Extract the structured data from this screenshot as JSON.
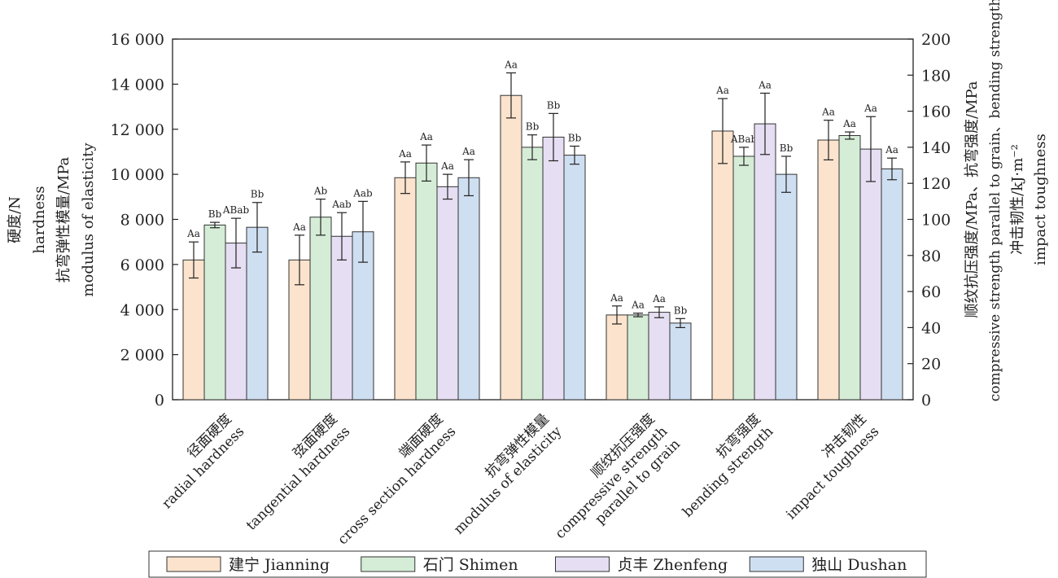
{
  "chart_data": {
    "type": "bar",
    "left_axis": {
      "lines": [
        "硬度/N",
        "hardness",
        "抗弯弹性模量/MPa",
        "modulus of elasticity"
      ],
      "ylim": [
        0,
        16000
      ],
      "ticks": [
        0,
        2000,
        4000,
        6000,
        8000,
        10000,
        12000,
        14000,
        16000
      ],
      "tick_labels": [
        "0",
        "2 000",
        "4 000",
        "6 000",
        "8 000",
        "10 000",
        "12 000",
        "14 000",
        "16 000"
      ]
    },
    "right_axis": {
      "lines": [
        "顺纹抗压强度/MPa、抗弯强度/MPa",
        "compressive strength parallel to grain、bending strength",
        "冲击韧性/kJ·m⁻²",
        "impact toughness"
      ],
      "ylim": [
        0,
        200
      ],
      "ticks": [
        0,
        20,
        40,
        60,
        80,
        100,
        120,
        140,
        160,
        180,
        200
      ],
      "tick_labels": [
        "0",
        "20",
        "40",
        "60",
        "80",
        "100",
        "120",
        "140",
        "160",
        "180",
        "200"
      ]
    },
    "series": [
      {
        "name": "建宁 Jianning",
        "color": "#fbe3cd"
      },
      {
        "name": "石门 Shimen",
        "color": "#d5edd7"
      },
      {
        "name": "贞丰 Zhenfeng",
        "color": "#e6def2"
      },
      {
        "name": "独山 Dushan",
        "color": "#cfdff2"
      }
    ],
    "categories": [
      {
        "zh": "径面硬度",
        "en": [
          "radial hardness"
        ],
        "axis": "left",
        "values": [
          6200,
          7750,
          6950,
          7650
        ],
        "errors": [
          800,
          120,
          1100,
          1100
        ],
        "labels": [
          "Aa",
          "Bb",
          "ABab",
          "Bb"
        ]
      },
      {
        "zh": "弦面硬度",
        "en": [
          "tangential hardness"
        ],
        "axis": "left",
        "values": [
          6200,
          8100,
          7250,
          7450
        ],
        "errors": [
          1100,
          800,
          1050,
          1350
        ],
        "labels": [
          "Aa",
          "Ab",
          "Aab",
          "Aab"
        ]
      },
      {
        "zh": "端面硬度",
        "en": [
          "cross section hardness"
        ],
        "axis": "left",
        "values": [
          9850,
          10500,
          9450,
          9850
        ],
        "errors": [
          700,
          800,
          550,
          800
        ],
        "labels": [
          "Aa",
          "Aa",
          "Aa",
          "Aa"
        ]
      },
      {
        "zh": "抗弯弹性模量",
        "en": [
          "modulus of elasticity"
        ],
        "axis": "left",
        "values": [
          13500,
          11200,
          11650,
          10850
        ],
        "errors": [
          1000,
          550,
          1050,
          400
        ],
        "labels": [
          "Aa",
          "Bb",
          "Bb",
          "Bb"
        ]
      },
      {
        "zh": "顺纹抗压强度",
        "en": [
          "compressive strength",
          "parallel to grain"
        ],
        "axis": "right",
        "values": [
          47,
          47,
          48.5,
          42.5
        ],
        "errors": [
          5,
          1,
          3,
          2.5
        ],
        "labels": [
          "Aa",
          "Aa",
          "Aa",
          "Bb"
        ]
      },
      {
        "zh": "抗弯强度",
        "en": [
          "bending strength"
        ],
        "axis": "right",
        "values": [
          149,
          135,
          153,
          125
        ],
        "errors": [
          18,
          5,
          17,
          10
        ],
        "labels": [
          "Aa",
          "ABab",
          "Aa",
          "Bb"
        ]
      },
      {
        "zh": "冲击韧性",
        "en": [
          "impact toughness"
        ],
        "axis": "right",
        "values": [
          144,
          146.5,
          139,
          128
        ],
        "errors": [
          11,
          2,
          18,
          6
        ],
        "labels": [
          "Aa",
          "Aa",
          "Aa",
          "Aa"
        ]
      }
    ],
    "legend_position": "bottom",
    "grid": false
  }
}
